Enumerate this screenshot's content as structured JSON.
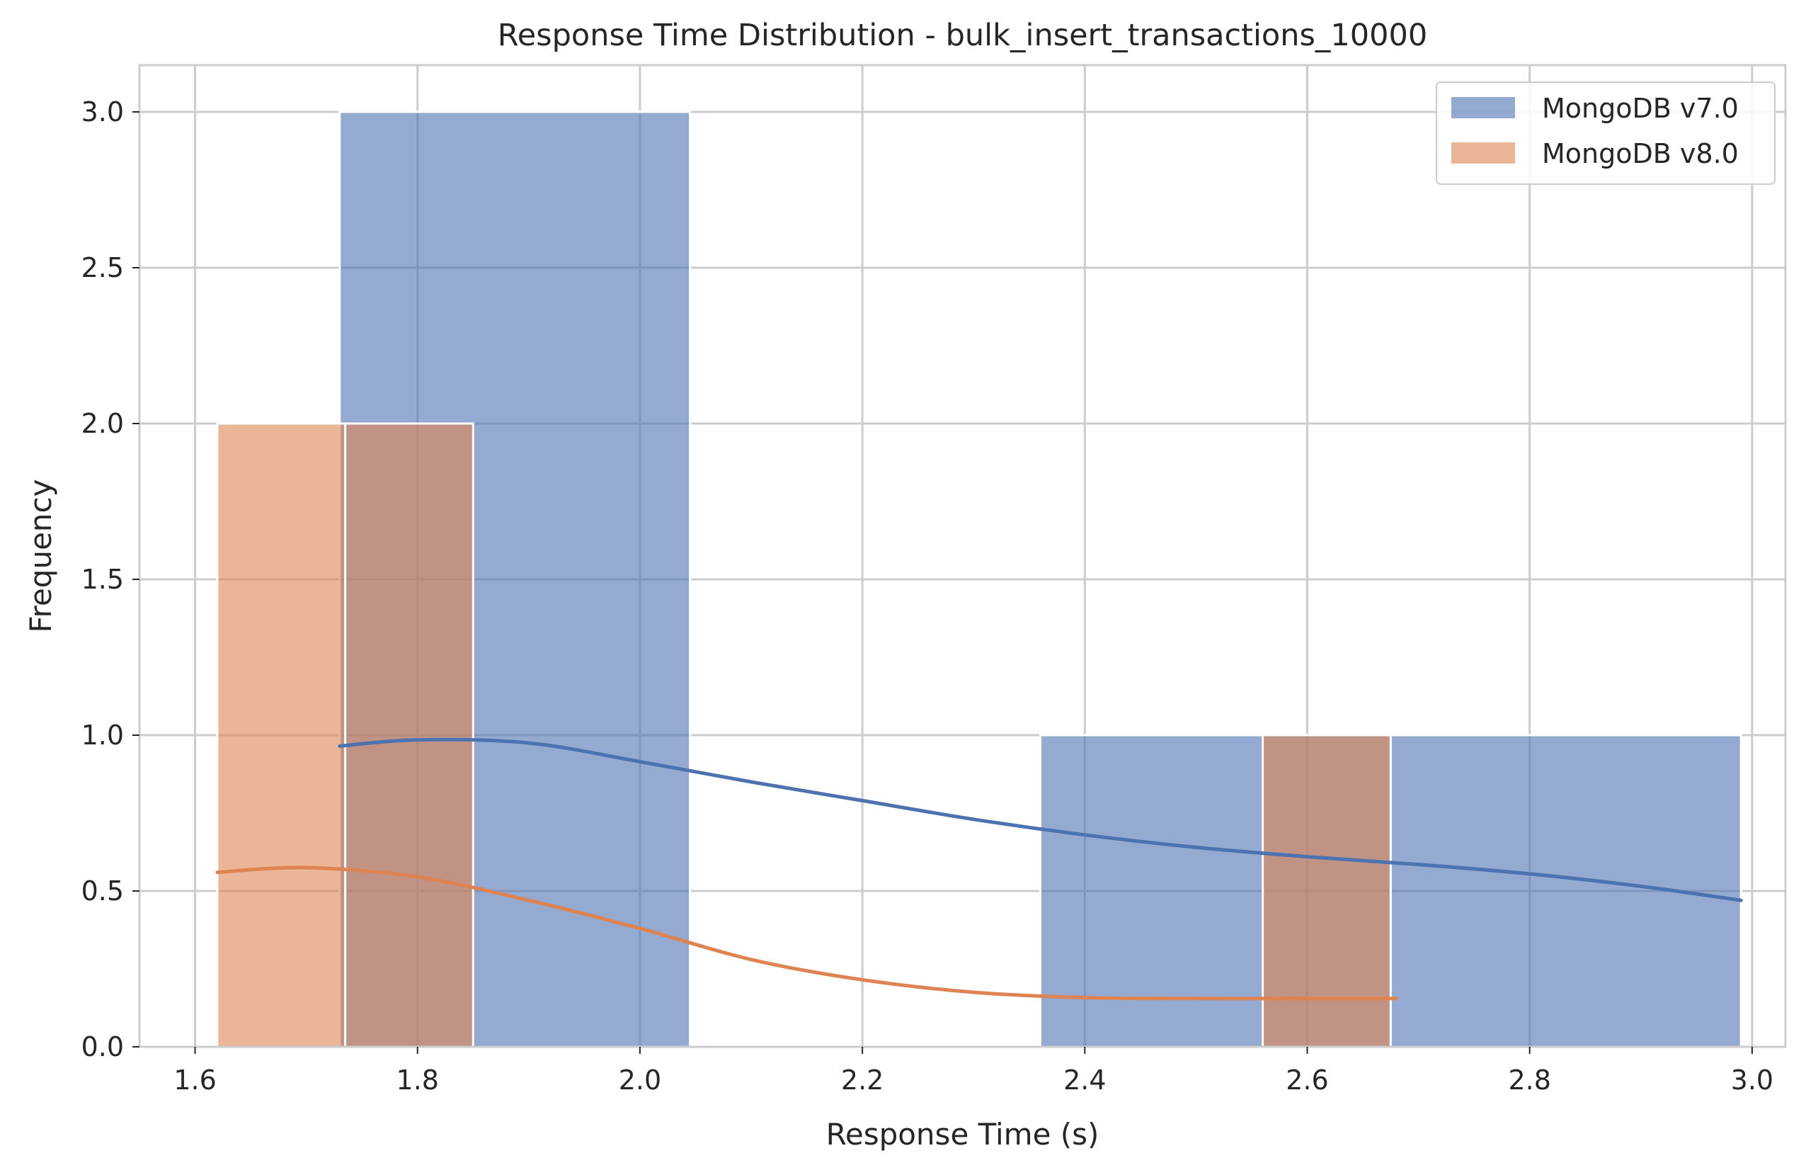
{
  "chart_data": {
    "type": "histogram",
    "title": "Response Time Distribution - bulk_insert_transactions_10000",
    "xlabel": "Response Time (s)",
    "ylabel": "Frequency",
    "xlim": [
      1.55,
      3.03
    ],
    "ylim": [
      0,
      3.15
    ],
    "xticks": [
      1.6,
      1.8,
      2.0,
      2.2,
      2.4,
      2.6,
      2.8,
      3.0
    ],
    "xtick_labels": [
      "1.6",
      "1.8",
      "2.0",
      "2.2",
      "2.4",
      "2.6",
      "2.8",
      "3.0"
    ],
    "yticks": [
      0.0,
      0.5,
      1.0,
      1.5,
      2.0,
      2.5,
      3.0
    ],
    "ytick_labels": [
      "0.0",
      "0.5",
      "1.0",
      "1.5",
      "2.0",
      "2.5",
      "3.0"
    ],
    "grid": true,
    "legend_position": "top-right",
    "series": [
      {
        "name": "MongoDB v7.0",
        "color": "#4c72b0",
        "bars": [
          {
            "x0": 1.73,
            "x1": 2.045,
            "count": 3
          },
          {
            "x0": 2.045,
            "x1": 2.36,
            "count": 0
          },
          {
            "x0": 2.36,
            "x1": 2.675,
            "count": 1
          },
          {
            "x0": 2.675,
            "x1": 2.99,
            "count": 1
          }
        ],
        "kde": [
          [
            1.73,
            0.965
          ],
          [
            1.8,
            0.985
          ],
          [
            1.9,
            0.975
          ],
          [
            2.0,
            0.915
          ],
          [
            2.1,
            0.85
          ],
          [
            2.2,
            0.79
          ],
          [
            2.3,
            0.73
          ],
          [
            2.4,
            0.68
          ],
          [
            2.5,
            0.64
          ],
          [
            2.6,
            0.61
          ],
          [
            2.7,
            0.585
          ],
          [
            2.8,
            0.555
          ],
          [
            2.9,
            0.515
          ],
          [
            2.99,
            0.47
          ]
        ]
      },
      {
        "name": "MongoDB v8.0",
        "color": "#dd8452",
        "bars": [
          {
            "x0": 1.62,
            "x1": 1.735,
            "count": 2
          },
          {
            "x0": 1.735,
            "x1": 1.85,
            "count": 2
          },
          {
            "x0": 1.85,
            "x1": 2.56,
            "count": 0
          },
          {
            "x0": 2.56,
            "x1": 2.675,
            "count": 1
          }
        ],
        "kde": [
          [
            1.62,
            0.56
          ],
          [
            1.7,
            0.575
          ],
          [
            1.8,
            0.545
          ],
          [
            1.9,
            0.47
          ],
          [
            2.0,
            0.38
          ],
          [
            2.1,
            0.28
          ],
          [
            2.2,
            0.215
          ],
          [
            2.3,
            0.175
          ],
          [
            2.4,
            0.158
          ],
          [
            2.5,
            0.155
          ],
          [
            2.6,
            0.155
          ],
          [
            2.68,
            0.155
          ]
        ]
      }
    ]
  }
}
